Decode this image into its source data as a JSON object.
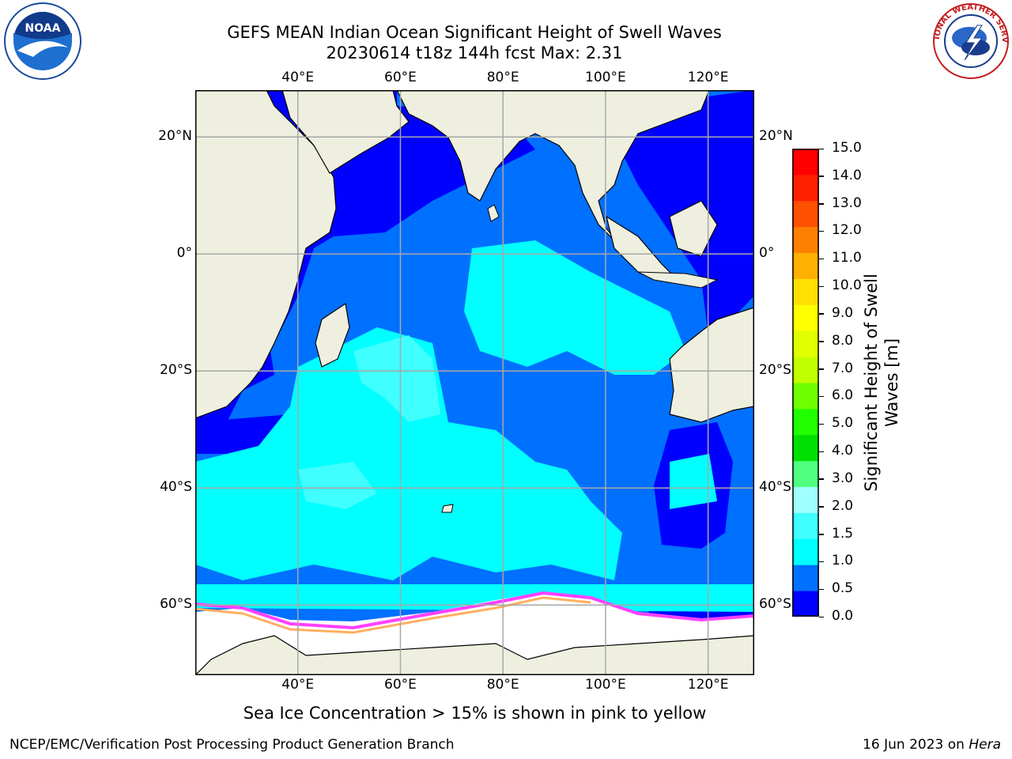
{
  "title": {
    "line1": "GEFS MEAN Indian Ocean Significant Height of Swell Waves",
    "line2": "20230614 t18z 144h fcst   Max: 2.31"
  },
  "logos": {
    "left": {
      "name": "noaa-logo",
      "text": "NOAA",
      "ring_text": "NATIONAL OCEANIC AND ATMOSPHERIC ADMINISTRATION · U.S. DEPARTMENT OF COMMERCE"
    },
    "right": {
      "name": "nws-logo",
      "ring_text": "NATIONAL WEATHER SERVICE"
    }
  },
  "map": {
    "lon_ticks": [
      "40°E",
      "60°E",
      "80°E",
      "100°E",
      "120°E"
    ],
    "lat_ticks": [
      "20°N",
      "0°",
      "20°S",
      "40°S",
      "60°S"
    ],
    "lon_values": [
      40,
      60,
      80,
      100,
      120
    ],
    "lat_values": [
      20,
      0,
      -20,
      -40,
      -60
    ],
    "extent": {
      "lon_min": 20,
      "lon_max": 129,
      "lat_min": -72,
      "lat_max": 28
    },
    "grid": true,
    "colors": {
      "land": "#efefdf",
      "coast": "#000000",
      "grid": "#a8a8a8",
      "ice": "#ffffff",
      "ice_edge_pink": "#ff40ff",
      "ice_edge_orange": "#ffb060"
    }
  },
  "colorbar": {
    "label": "Significant Height of Swell Waves [m]",
    "label_line1": "Significant Height of Swell",
    "label_line2": "Waves [m]",
    "ticks": [
      "15.0",
      "14.0",
      "13.0",
      "12.0",
      "11.0",
      "10.0",
      "9.0",
      "8.0",
      "7.0",
      "6.0",
      "5.0",
      "4.0",
      "3.0",
      "2.0",
      "1.5",
      "1.0",
      "0.5",
      "0.0"
    ],
    "colors_bottom_to_top": [
      "#0000ff",
      "#0070ff",
      "#00ffff",
      "#40ffff",
      "#a0ffff",
      "#50ff80",
      "#00e000",
      "#20ff00",
      "#70ff00",
      "#c0ff00",
      "#e0ff00",
      "#ffff00",
      "#ffe000",
      "#ffb000",
      "#ff8000",
      "#ff5000",
      "#ff2000",
      "#ff0000"
    ]
  },
  "note": "Sea Ice Concentration > 15% is shown in pink to yellow",
  "footer": {
    "left": "NCEP/EMC/Verification Post Processing Product Generation Branch",
    "date": "16 Jun 2023 on ",
    "machine": "Hera"
  }
}
